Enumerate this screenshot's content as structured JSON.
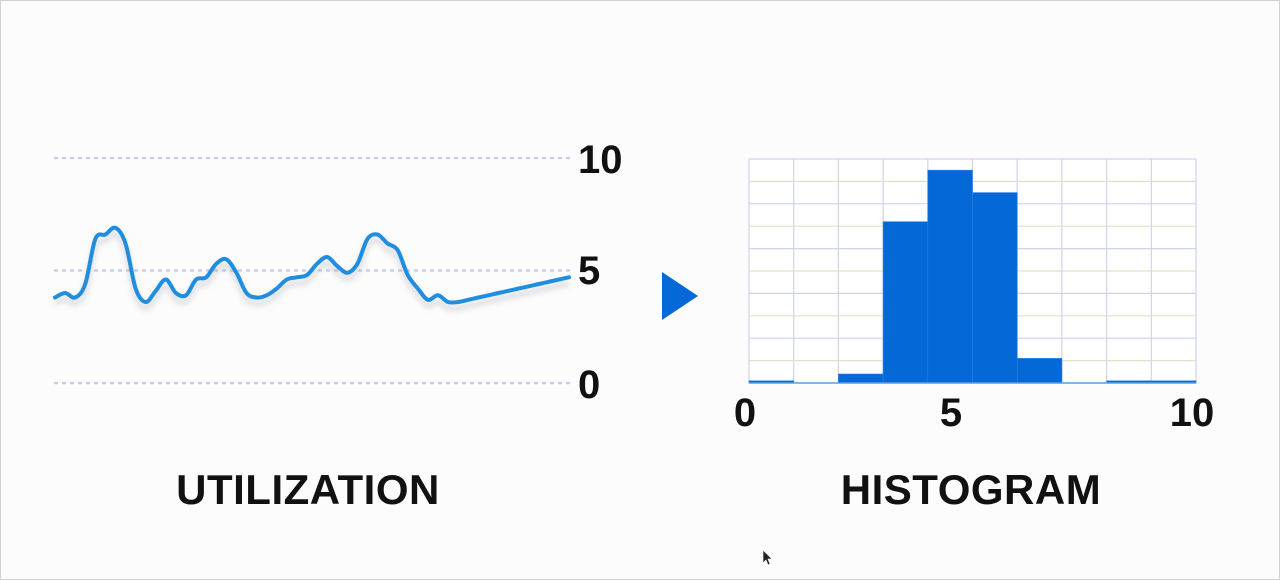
{
  "colors": {
    "line": "#1f8de0",
    "bar": "#0468d6",
    "arrow": "#0468d6",
    "grid": "#c9cdea",
    "text": "#111111"
  },
  "chart_data": [
    {
      "type": "line",
      "title": "UTILIZATION",
      "x": [
        0,
        1,
        2,
        3,
        4,
        5,
        6,
        7,
        8,
        9,
        10,
        11,
        12,
        13,
        14,
        15,
        16,
        17,
        18,
        19,
        20,
        21,
        22,
        23,
        24,
        25,
        26,
        27,
        28,
        29,
        30,
        31,
        32,
        33,
        34,
        35,
        36,
        37,
        38,
        39,
        40,
        41,
        42,
        43,
        44,
        45,
        46,
        47,
        48,
        49,
        50,
        51
      ],
      "values": [
        3.8,
        4.0,
        3.8,
        4.4,
        6.4,
        6.6,
        6.9,
        6.2,
        4.2,
        3.6,
        4.1,
        4.6,
        4.0,
        3.9,
        4.6,
        4.7,
        5.3,
        5.5,
        4.9,
        4.0,
        3.8,
        3.9,
        4.2,
        4.6,
        4.7,
        4.8,
        5.3,
        5.6,
        5.2,
        4.9,
        5.3,
        6.4,
        6.6,
        6.2,
        5.9,
        4.8,
        4.2,
        3.7,
        3.9,
        3.6,
        3.6,
        3.7,
        3.8,
        3.9,
        4.0,
        4.1,
        4.2,
        4.3,
        4.4,
        4.5,
        4.6,
        4.7
      ],
      "ylim": [
        0,
        10
      ],
      "y_ticks": [
        "0",
        "5",
        "10"
      ],
      "grid": "dotted horizontal at 0, 5, 10"
    },
    {
      "type": "bar",
      "title": "HISTOGRAM",
      "bin_edges": [
        0,
        1,
        2,
        3,
        4,
        5,
        6,
        7,
        8,
        9,
        10
      ],
      "values": [
        0.1,
        0,
        0.4,
        7.2,
        9.5,
        8.5,
        1.1,
        0,
        0.1,
        0.1
      ],
      "xlim": [
        0,
        10
      ],
      "ylim": [
        0,
        10
      ],
      "x_ticks": [
        "0",
        "5",
        "10"
      ],
      "grid": "on"
    }
  ]
}
